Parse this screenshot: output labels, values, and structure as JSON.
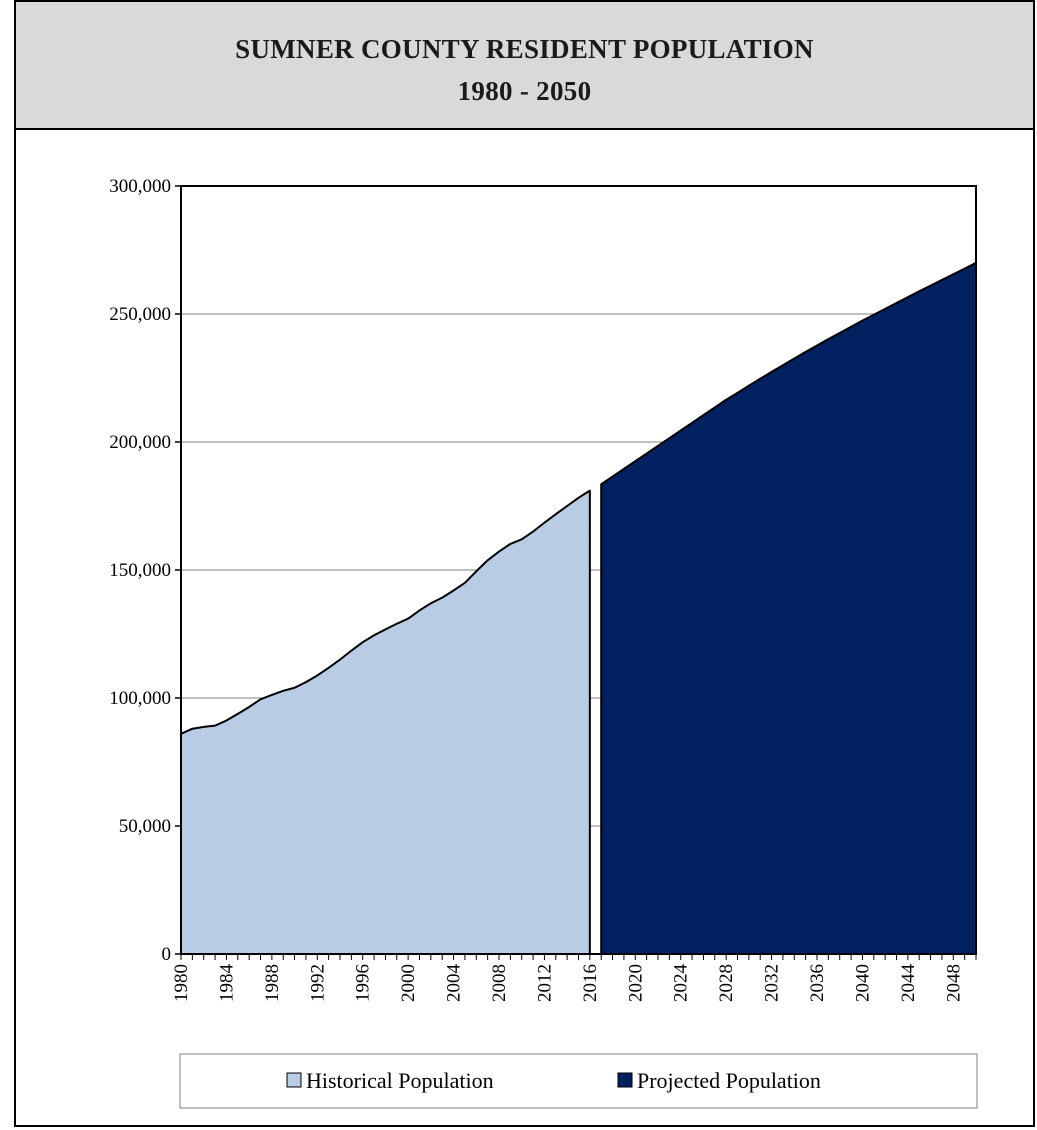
{
  "header": {
    "title_line1": "SUMNER COUNTY RESIDENT POPULATION",
    "title_line2": "1980 - 2050"
  },
  "colors": {
    "historical": "#b8cce4",
    "projected": "#002060",
    "header_bg": "#d9d9d9"
  },
  "chart_data": {
    "type": "area",
    "title": "SUMNER COUNTY RESIDENT POPULATION",
    "subtitle": "1980 - 2050",
    "xlabel": "",
    "ylabel": "",
    "xlim": [
      1980,
      2050
    ],
    "ylim": [
      0,
      300000
    ],
    "y_ticks": [
      0,
      50000,
      100000,
      150000,
      200000,
      250000,
      300000
    ],
    "y_tick_labels": [
      "0",
      "50,000",
      "100,000",
      "150,000",
      "200,000",
      "250,000",
      "300,000"
    ],
    "x_tick_labels": [
      "1980",
      "1984",
      "1988",
      "1992",
      "1996",
      "2000",
      "2004",
      "2008",
      "2012",
      "2016",
      "2020",
      "2024",
      "2028",
      "2032",
      "2036",
      "2040",
      "2044",
      "2048"
    ],
    "grid": "horizontal",
    "legend_position": "bottom",
    "series": [
      {
        "name": "Historical Population",
        "x": [
          1980,
          1981,
          1982,
          1983,
          1984,
          1985,
          1986,
          1987,
          1988,
          1989,
          1990,
          1991,
          1992,
          1993,
          1994,
          1995,
          1996,
          1997,
          1998,
          1999,
          2000,
          2001,
          2002,
          2003,
          2004,
          2005,
          2006,
          2007,
          2008,
          2009,
          2010,
          2011,
          2012,
          2013,
          2014,
          2015,
          2016
        ],
        "values": [
          86000,
          88000,
          88700,
          89200,
          91200,
          93800,
          96500,
          99500,
          101200,
          102800,
          104000,
          106200,
          108800,
          111800,
          115000,
          118500,
          121800,
          124500,
          126800,
          129000,
          131000,
          134200,
          137000,
          139200,
          142000,
          145000,
          149500,
          153800,
          157200,
          160200,
          162000,
          165000,
          168500,
          171800,
          175000,
          178200,
          181000
        ]
      },
      {
        "name": "Projected Population",
        "x": [
          2017,
          2018,
          2019,
          2020,
          2021,
          2022,
          2023,
          2024,
          2025,
          2026,
          2027,
          2028,
          2029,
          2030,
          2031,
          2032,
          2033,
          2034,
          2035,
          2036,
          2037,
          2038,
          2039,
          2040,
          2041,
          2042,
          2043,
          2044,
          2045,
          2046,
          2047,
          2048,
          2049,
          2050
        ],
        "values": [
          183500,
          186500,
          189500,
          192500,
          195500,
          198500,
          201500,
          204500,
          207500,
          210500,
          213500,
          216500,
          219200,
          222000,
          224700,
          227400,
          230000,
          232600,
          235200,
          237700,
          240200,
          242600,
          245000,
          247400,
          249700,
          252000,
          254300,
          256600,
          258900,
          261100,
          263300,
          265500,
          267700,
          270000
        ]
      }
    ]
  }
}
